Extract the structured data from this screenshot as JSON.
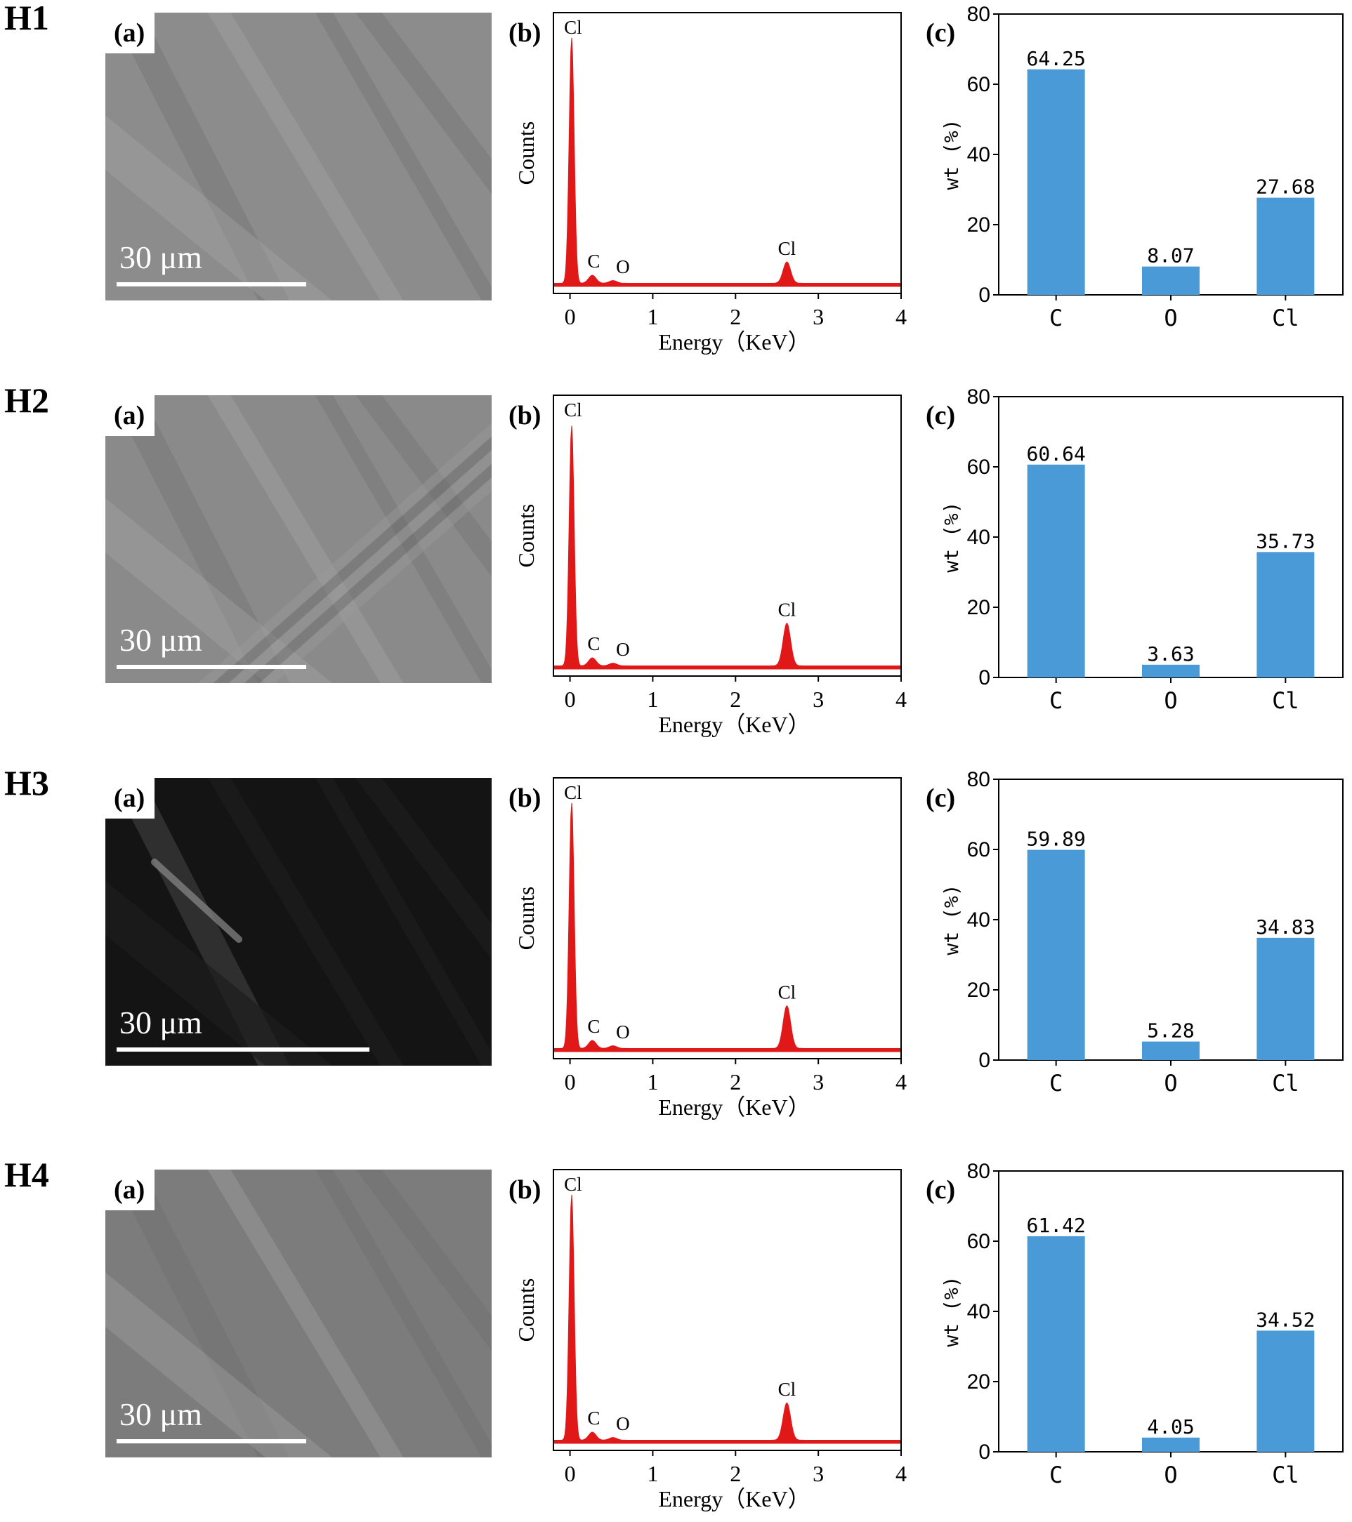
{
  "rows": [
    {
      "label": "H1",
      "scale": "30 μm",
      "sem_tone": "#8c8c8c"
    },
    {
      "label": "H2",
      "scale": "30 μm",
      "sem_tone": "#8a8a8a"
    },
    {
      "label": "H3",
      "scale": "30 μm",
      "sem_tone": "#141414"
    },
    {
      "label": "H4",
      "scale": "30 μm",
      "sem_tone": "#7c7c7c"
    }
  ],
  "panel_labels": {
    "a": "(a)",
    "b": "(b)",
    "c": "(c)"
  },
  "colors": {
    "spectrum": "#e01818",
    "bar": "#4a9ad8"
  },
  "chart_data": [
    {
      "type": "line",
      "panel": "H1 (b)",
      "xlabel": "Energy（KeV）",
      "ylabel": "Counts",
      "xlim": [
        -0.2,
        4
      ],
      "xticks": [
        0,
        1,
        2,
        3,
        4
      ],
      "peaks": [
        {
          "x": 0.02,
          "height": 0.92,
          "label": "Cl"
        },
        {
          "x": 0.27,
          "height": 0.03,
          "label": "C"
        },
        {
          "x": 0.52,
          "height": 0.01,
          "label": "O"
        },
        {
          "x": 2.62,
          "height": 0.08,
          "label": "Cl"
        }
      ]
    },
    {
      "type": "bar",
      "panel": "H1 (c)",
      "ylabel": "wt (%)",
      "ylim": [
        0,
        80
      ],
      "yticks": [
        0,
        20,
        40,
        60,
        80
      ],
      "categories": [
        "C",
        "O",
        "Cl"
      ],
      "values": [
        64.25,
        8.07,
        27.68
      ],
      "value_labels": [
        "64.25",
        "8.07",
        "27.68"
      ]
    },
    {
      "type": "line",
      "panel": "H2 (b)",
      "xlabel": "Energy（KeV）",
      "ylabel": "Counts",
      "xlim": [
        -0.2,
        4
      ],
      "xticks": [
        0,
        1,
        2,
        3,
        4
      ],
      "peaks": [
        {
          "x": 0.02,
          "height": 0.9,
          "label": "Cl"
        },
        {
          "x": 0.27,
          "height": 0.03,
          "label": "C"
        },
        {
          "x": 0.52,
          "height": 0.01,
          "label": "O"
        },
        {
          "x": 2.62,
          "height": 0.16,
          "label": "Cl"
        }
      ]
    },
    {
      "type": "bar",
      "panel": "H2 (c)",
      "ylabel": "wt (%)",
      "ylim": [
        0,
        80
      ],
      "yticks": [
        0,
        20,
        40,
        60,
        80
      ],
      "categories": [
        "C",
        "O",
        "Cl"
      ],
      "values": [
        60.64,
        3.63,
        35.73
      ],
      "value_labels": [
        "60.64",
        "3.63",
        "35.73"
      ]
    },
    {
      "type": "line",
      "panel": "H3 (b)",
      "xlabel": "Energy（KeV）",
      "ylabel": "Counts",
      "xlim": [
        -0.2,
        4
      ],
      "xticks": [
        0,
        1,
        2,
        3,
        4
      ],
      "peaks": [
        {
          "x": 0.02,
          "height": 0.92,
          "label": "Cl"
        },
        {
          "x": 0.27,
          "height": 0.03,
          "label": "C"
        },
        {
          "x": 0.52,
          "height": 0.01,
          "label": "O"
        },
        {
          "x": 2.62,
          "height": 0.16,
          "label": "Cl"
        }
      ]
    },
    {
      "type": "bar",
      "panel": "H3 (c)",
      "ylabel": "wt (%)",
      "ylim": [
        0,
        80
      ],
      "yticks": [
        0,
        20,
        40,
        60,
        80
      ],
      "categories": [
        "C",
        "O",
        "Cl"
      ],
      "values": [
        59.89,
        5.28,
        34.83
      ],
      "value_labels": [
        "59.89",
        "5.28",
        "34.83"
      ]
    },
    {
      "type": "line",
      "panel": "H4 (b)",
      "xlabel": "Energy（KeV）",
      "ylabel": "Counts",
      "xlim": [
        -0.2,
        4
      ],
      "xticks": [
        0,
        1,
        2,
        3,
        4
      ],
      "peaks": [
        {
          "x": 0.02,
          "height": 0.92,
          "label": "Cl"
        },
        {
          "x": 0.27,
          "height": 0.03,
          "label": "C"
        },
        {
          "x": 0.52,
          "height": 0.01,
          "label": "O"
        },
        {
          "x": 2.62,
          "height": 0.14,
          "label": "Cl"
        }
      ]
    },
    {
      "type": "bar",
      "panel": "H4 (c)",
      "ylabel": "wt (%)",
      "ylim": [
        0,
        80
      ],
      "yticks": [
        0,
        20,
        40,
        60,
        80
      ],
      "categories": [
        "C",
        "O",
        "Cl"
      ],
      "values": [
        61.42,
        4.05,
        34.52
      ],
      "value_labels": [
        "61.42",
        "4.05",
        "34.52"
      ]
    }
  ]
}
